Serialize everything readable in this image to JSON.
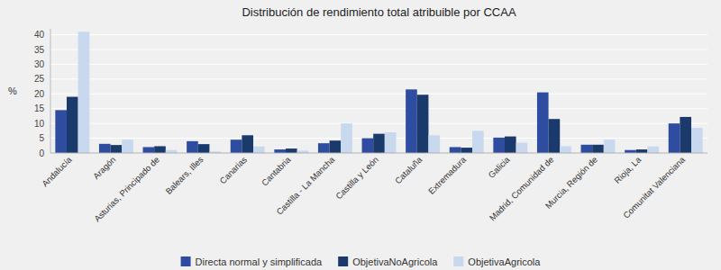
{
  "chart_data": {
    "type": "bar",
    "title": "Distribución de rendimiento total atribuible por CCAA",
    "ylabel": "%",
    "categories": [
      "Andalucía",
      "Aragón",
      "Asturias, Principado de",
      "Balears, Illes",
      "Canarias",
      "Cantabria",
      "Castilla - La Mancha",
      "Castilla y León",
      "Cataluña",
      "Extremadura",
      "Galicia",
      "Madrid, Comunidad de",
      "Murcia, Región de",
      "Rioja, La",
      "Comunitat Valenciana"
    ],
    "series": [
      {
        "name": "Directa normal y simplificada",
        "color": "#2E4DA0",
        "values": [
          14.5,
          3.1,
          2.0,
          4.0,
          4.5,
          1.2,
          3.3,
          5.0,
          21.5,
          2.0,
          5.2,
          20.5,
          2.8,
          1.0,
          10.0
        ]
      },
      {
        "name": "ObjetivaNoAgricola",
        "color": "#1A3A6B",
        "values": [
          19.0,
          2.7,
          2.3,
          3.0,
          6.0,
          1.5,
          4.2,
          6.5,
          19.7,
          1.8,
          5.6,
          11.5,
          2.8,
          1.2,
          12.2
        ]
      },
      {
        "name": "ObjetivaAgricola",
        "color": "#C8D8EE",
        "values": [
          41.0,
          4.5,
          1.0,
          0.5,
          2.2,
          0.8,
          10.0,
          7.0,
          6.0,
          7.5,
          3.5,
          2.3,
          4.5,
          2.2,
          8.5
        ]
      }
    ],
    "ylim": [
      0,
      42
    ],
    "yticks": [
      0,
      5,
      10,
      15,
      20,
      25,
      30,
      35,
      40
    ],
    "grid": true,
    "legend": "bottom"
  }
}
